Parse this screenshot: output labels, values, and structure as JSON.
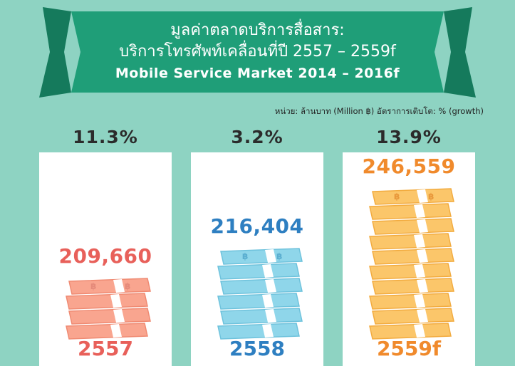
{
  "title_line1": "มูลค่าตลาดบริการสื่อสาร:",
  "title_line2": "บริการโทรศัพท์เคลื่อนที่ปี 2557 – 2559f",
  "title_line3": "Mobile Service Market 2014 – 2016f",
  "unit_note": "หน่วย: ล้านบาท (Million ฿) อัตราการเติบโต: % (growth)",
  "colors": {
    "background": "#8ed3c2",
    "banner": "#1f9e78",
    "red": "#e8605a",
    "blue": "#2e7fc1",
    "orange": "#f08a2c"
  },
  "chart_data": {
    "type": "bar",
    "categories": [
      "2557",
      "2558",
      "2559f"
    ],
    "values": [
      209660,
      216404,
      246559
    ],
    "value_labels": [
      "209,660",
      "216,404",
      "246,559"
    ],
    "growth_labels": [
      "11.3%",
      "3.2%",
      "13.9%"
    ],
    "growth": [
      11.3,
      3.2,
      13.9
    ],
    "stack_counts": [
      4,
      6,
      10
    ],
    "colors": [
      "#e8605a",
      "#2e7fc1",
      "#f08a2c"
    ]
  }
}
